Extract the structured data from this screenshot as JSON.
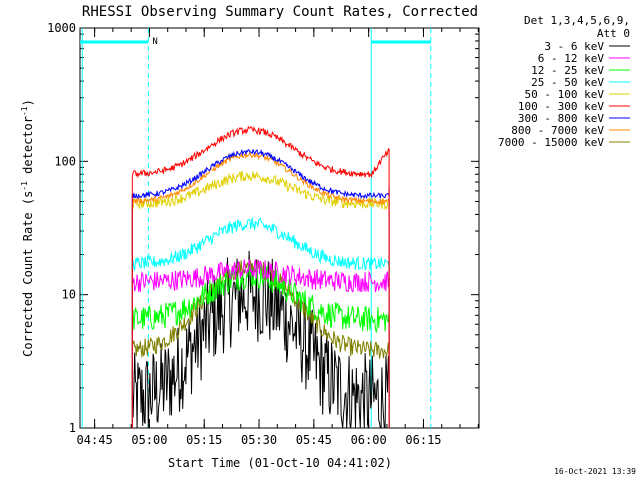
{
  "chart_data": {
    "type": "line",
    "title": "RHESSI Observing Summary Count Rates, Corrected",
    "xlabel": "Start Time (01-Oct-10 04:41:02)",
    "ylabel_main": "Corrected Count Rate (s",
    "ylabel_sup1": "-1",
    "ylabel_mid": " detector",
    "ylabel_sup2": "-1",
    "ylabel_end": ")",
    "yscale": "log",
    "ylim": [
      1,
      1000
    ],
    "ytick_labels": [
      "1",
      "10",
      "100",
      "1000"
    ],
    "xtick_labels": [
      "04:45",
      "05:00",
      "05:15",
      "05:30",
      "05:45",
      "06:00",
      "06:15"
    ],
    "xtick_minutes": [
      45,
      60,
      75,
      90,
      105,
      120,
      135
    ],
    "xlim_minutes": [
      41.0,
      150.2
    ],
    "data_start_minute": 55.3,
    "data_end_minute": 125.6,
    "peak_minute": 87.5,
    "legend_header": [
      "Det 1,3,4,5,6,9,",
      "Att 0"
    ],
    "footer_date": "16-Oct-2021 13:39",
    "flag_label": "N",
    "series": [
      {
        "name": "3 - 6 keV",
        "color": "#000000",
        "base": 1.6,
        "peak": 10,
        "noise": 0.35,
        "end_level": 3
      },
      {
        "name": "6 - 12 keV",
        "color": "#ff00ff",
        "base": 12.5,
        "peak": 15.5,
        "noise": 0.08,
        "end_level": 12.5
      },
      {
        "name": "12 - 25 keV",
        "color": "#00ff00",
        "base": 6.5,
        "peak": 14,
        "noise": 0.1,
        "end_level": 6.5
      },
      {
        "name": "25 - 50 keV",
        "color": "#00ffff",
        "base": 17,
        "peak": 34,
        "noise": 0.05,
        "end_level": 17
      },
      {
        "name": "50 - 100 keV",
        "color": "#e0d000",
        "base": 48,
        "peak": 78,
        "noise": 0.04,
        "end_level": 50
      },
      {
        "name": "100 - 300 keV",
        "color": "#ff0000",
        "base": 80,
        "peak": 172,
        "noise": 0.025,
        "end_level": 120
      },
      {
        "name": "300 - 800 keV",
        "color": "#0000ff",
        "base": 55,
        "peak": 118,
        "noise": 0.02,
        "end_level": 65
      },
      {
        "name": "800 - 7000 keV",
        "color": "#ff8800",
        "base": 50,
        "peak": 112,
        "noise": 0.02,
        "end_level": 62
      },
      {
        "name": "7000 - 15000 keV",
        "color": "#808000",
        "base": 3.8,
        "peak": 16,
        "noise": 0.07,
        "end_level": 3.8
      }
    ],
    "grid": false,
    "legend_position": "right"
  }
}
